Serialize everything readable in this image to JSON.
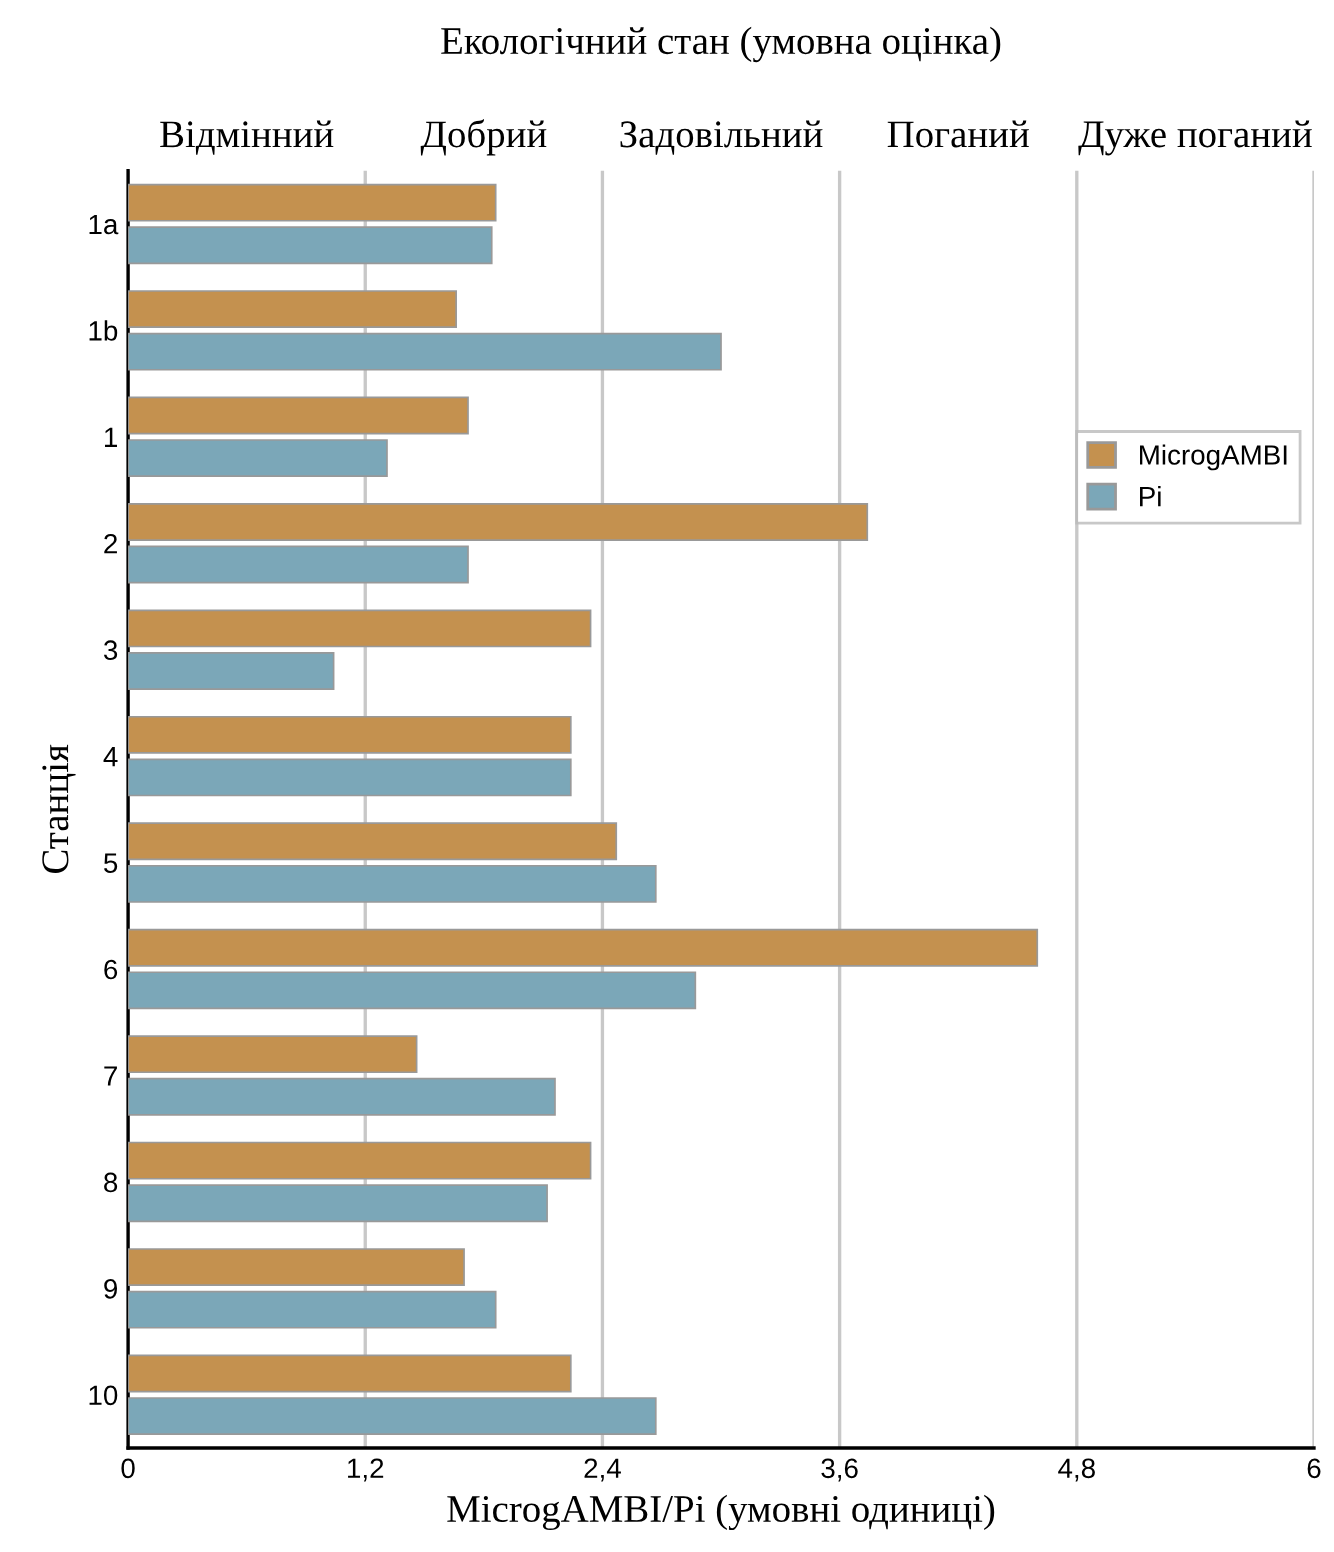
{
  "chart_data": {
    "type": "bar",
    "orientation": "horizontal",
    "x2label": "Екологічний стан (умовна оцінка)",
    "xlabel": "MicrogAMBI/Pi (умовні одиниці)",
    "ylabel": "Станція",
    "categories": [
      "1a",
      "1b",
      "1",
      "2",
      "3",
      "4",
      "5",
      "6",
      "7",
      "8",
      "9",
      "10"
    ],
    "series": [
      {
        "name": "MicrogAMBI",
        "color": "#c4914f",
        "values": [
          1.86,
          1.66,
          1.72,
          3.74,
          2.34,
          2.24,
          2.47,
          4.6,
          1.46,
          2.34,
          1.7,
          2.24
        ]
      },
      {
        "name": "Pi",
        "color": "#7ba7b8",
        "values": [
          1.84,
          3.0,
          1.31,
          1.72,
          1.04,
          2.24,
          2.67,
          2.87,
          2.16,
          2.12,
          1.86,
          2.67
        ]
      }
    ],
    "xlim": [
      0,
      6
    ],
    "xticks": [
      0,
      {
        "value": 1.2,
        "label": "1,2"
      },
      {
        "value": 2.4,
        "label": "2,4"
      },
      {
        "value": 3.6,
        "label": "3,6"
      },
      {
        "value": 4.8,
        "label": "4,8"
      },
      6
    ],
    "annotations": [
      "Відмінний",
      "Добрий",
      "Задовільний",
      "Поганий",
      "Дуже поганий"
    ],
    "grid": "x",
    "legend": "right"
  }
}
